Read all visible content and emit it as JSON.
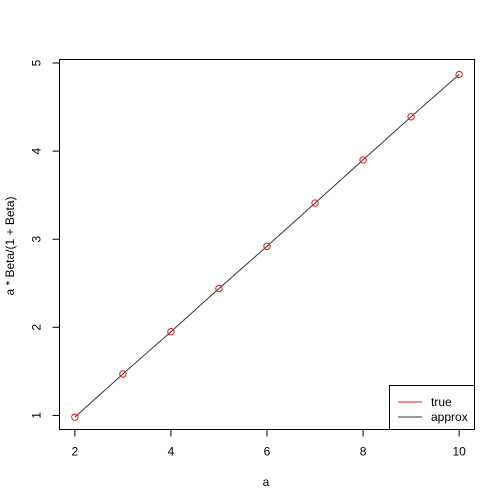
{
  "chart_data": {
    "type": "scatter",
    "xlabel": "a",
    "ylabel": "a * Beta/(1 + Beta)",
    "xlim": [
      1.68,
      10.32
    ],
    "ylim": [
      0.84,
      5.04
    ],
    "x_ticks": [
      2,
      4,
      6,
      8,
      10
    ],
    "y_ticks": [
      1,
      2,
      3,
      4,
      5
    ],
    "x": [
      2,
      3,
      4,
      5,
      6,
      7,
      8,
      9,
      10
    ],
    "series": [
      {
        "name": "true",
        "style": "points",
        "color": "#e8141a",
        "values": [
          0.98,
          1.47,
          1.95,
          2.44,
          2.92,
          3.41,
          3.9,
          4.39,
          4.87
        ]
      },
      {
        "name": "approx",
        "style": "line",
        "color": "#3a3a3a",
        "values": [
          0.98,
          1.47,
          1.95,
          2.44,
          2.92,
          3.41,
          3.9,
          4.39,
          4.87
        ]
      }
    ],
    "legend": {
      "position": "bottom-right",
      "entries": [
        "true",
        "approx"
      ]
    },
    "grid": false
  }
}
